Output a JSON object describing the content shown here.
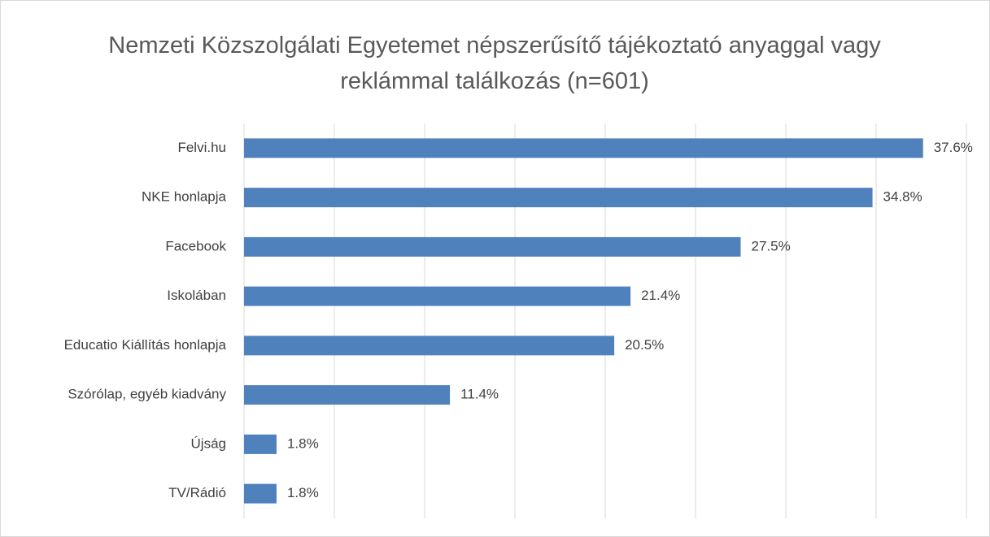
{
  "chart_data": {
    "type": "barh",
    "title": "Nemzeti Közszolgálati Egyetemet népszerűsítő tájékoztató anyaggal vagy reklámmal találkozás (n=601)",
    "categories": [
      "Felvi.hu",
      "NKE honlapja",
      "Facebook",
      "Iskolában",
      "Educatio Kiállítás honlapja",
      "Szórólap, egyéb kiadvány",
      "Újság",
      "TV/Rádió"
    ],
    "values": [
      37.6,
      34.8,
      27.5,
      21.4,
      20.5,
      11.4,
      1.8,
      1.8
    ],
    "value_labels": [
      "37.6%",
      "34.8%",
      "27.5%",
      "21.4%",
      "20.5%",
      "11.4%",
      "1.8%",
      "1.8%"
    ],
    "color": "#4f81bd",
    "xlim": [
      0,
      40
    ],
    "xticks": [
      0,
      5,
      10,
      15,
      20,
      25,
      30,
      35,
      40
    ],
    "grid": true
  }
}
